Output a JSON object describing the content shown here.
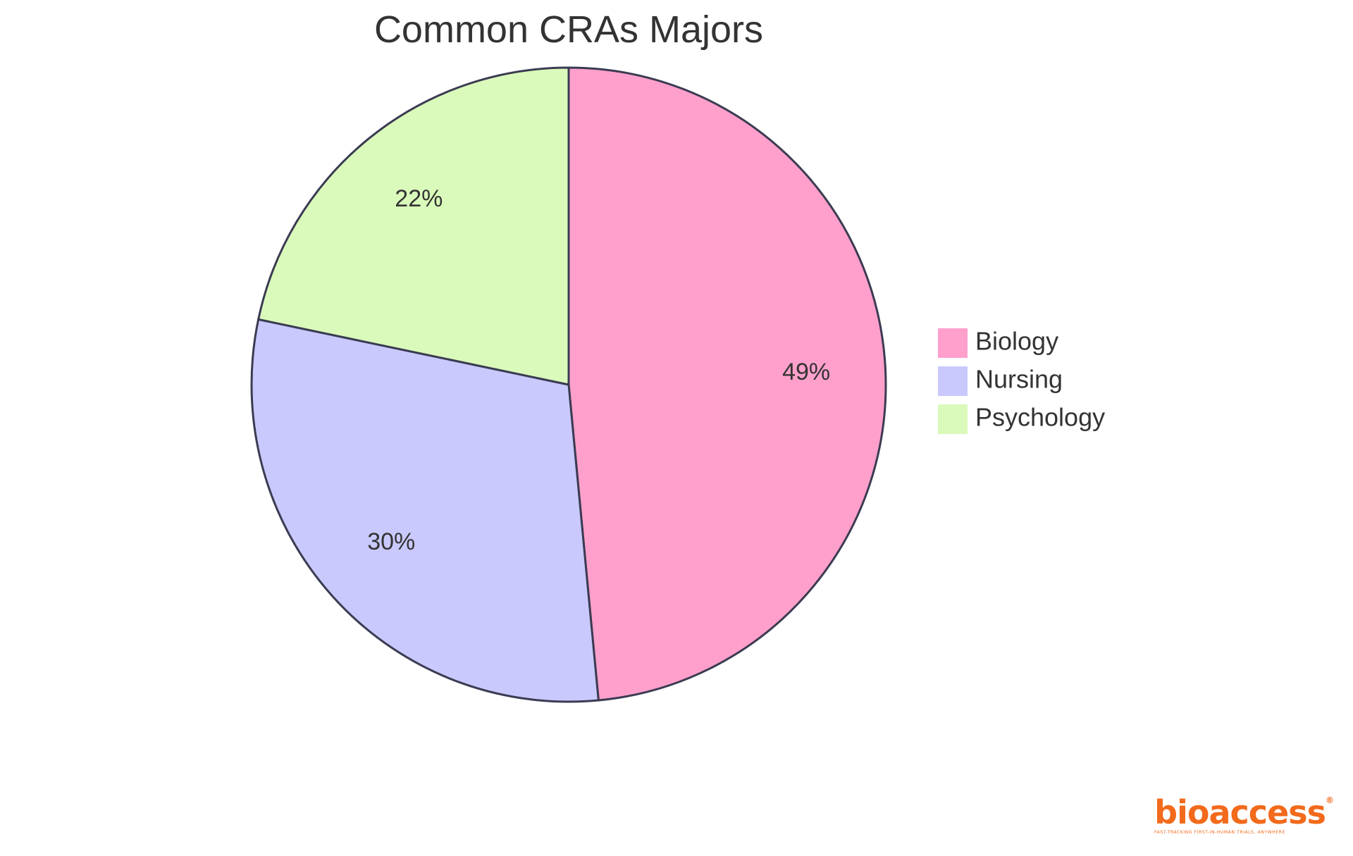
{
  "chart_data": {
    "type": "pie",
    "title": "Common CRAs Majors",
    "slices": [
      {
        "label": "Biology",
        "value": 48.5,
        "display": "49%",
        "color": "#ffa0cc"
      },
      {
        "label": "Nursing",
        "value": 29.8,
        "display": "30%",
        "color": "#c9c9fd"
      },
      {
        "label": "Psychology",
        "value": 21.7,
        "display": "22%",
        "color": "#dafabb"
      }
    ],
    "start_angle": "top (12 o'clock)",
    "direction": "clockwise",
    "legend_position": "right"
  },
  "logo": {
    "text": "bioaccess",
    "registered_mark": "®",
    "tagline": "FAST-TRACKING FIRST-IN-HUMAN TRIALS, ANYWHERE"
  },
  "colors": {
    "slice_stroke": "#3b3b52",
    "text": "#333333",
    "logo_accent": "#f26a1b"
  }
}
